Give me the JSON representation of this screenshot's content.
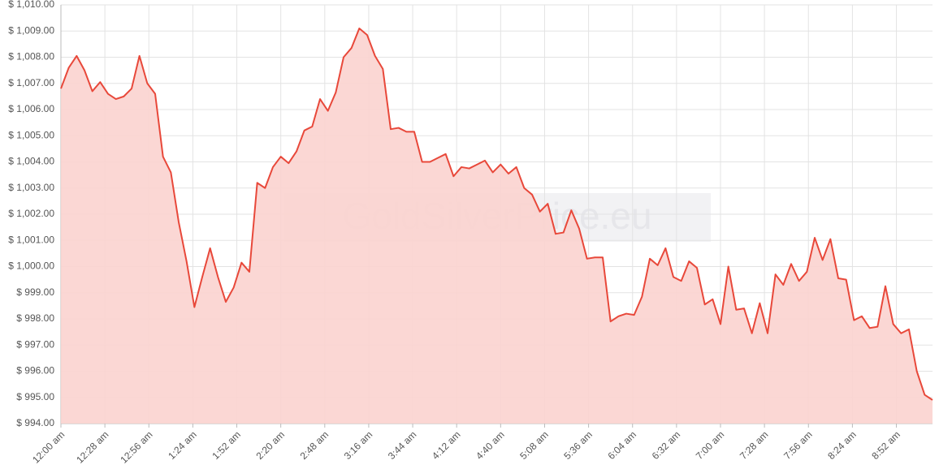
{
  "chart_data": {
    "type": "area",
    "watermark": "GoldSilverPrice.eu",
    "x": [
      0,
      5,
      10,
      15,
      20,
      25,
      30,
      35,
      40,
      45,
      50,
      55,
      60,
      65,
      70,
      75,
      80,
      85,
      90,
      95,
      100,
      105,
      110,
      115,
      120,
      125,
      130,
      135,
      140,
      145,
      150,
      155,
      160,
      165,
      170,
      175,
      180,
      185,
      190,
      195,
      200,
      205,
      210,
      215,
      220,
      225,
      230,
      235,
      240,
      245,
      250,
      255,
      260,
      265,
      270,
      275,
      280,
      285,
      290,
      295,
      300,
      305,
      310,
      315,
      320,
      325,
      330,
      335,
      340,
      345,
      350,
      355,
      360,
      365,
      370,
      375,
      380,
      385,
      390,
      395,
      400,
      405,
      410,
      415,
      420,
      425,
      430,
      435,
      440,
      445,
      450,
      455,
      460,
      465,
      470,
      475,
      480,
      485,
      490,
      495,
      500,
      505,
      510,
      515,
      520,
      525,
      530,
      535,
      540,
      545,
      550,
      555
    ],
    "values": [
      1006.8,
      1007.6,
      1008.05,
      1007.5,
      1006.7,
      1007.05,
      1006.6,
      1006.4,
      1006.5,
      1006.8,
      1008.05,
      1007.0,
      1006.6,
      1004.2,
      1003.6,
      1001.7,
      1000.2,
      998.45,
      999.6,
      1000.7,
      999.6,
      998.65,
      999.2,
      1000.15,
      999.8,
      1003.2,
      1003.0,
      1003.8,
      1004.2,
      1003.95,
      1004.4,
      1005.2,
      1005.35,
      1006.4,
      1005.95,
      1006.65,
      1008.0,
      1008.35,
      1009.1,
      1008.85,
      1008.05,
      1007.55,
      1005.25,
      1005.3,
      1005.15,
      1005.15,
      1004.0,
      1004.0,
      1004.15,
      1004.3,
      1003.45,
      1003.8,
      1003.75,
      1003.9,
      1004.05,
      1003.6,
      1003.9,
      1003.55,
      1003.8,
      1003.0,
      1002.75,
      1002.1,
      1002.4,
      1001.25,
      1001.3,
      1002.15,
      1001.45,
      1000.3,
      1000.35,
      1000.35,
      997.9,
      998.1,
      998.2,
      998.15,
      998.85,
      1000.3,
      1000.05,
      1000.7,
      999.6,
      999.45,
      1000.2,
      999.95,
      998.55,
      998.75,
      997.8,
      1000.0,
      998.35,
      998.4,
      997.45,
      998.6,
      997.45,
      999.7,
      999.3,
      1000.1,
      999.45,
      999.8,
      1001.1,
      1000.25,
      1001.05,
      999.55,
      999.5,
      997.95,
      998.1,
      997.65,
      997.7,
      999.25,
      997.8,
      997.45,
      997.6,
      996.0,
      995.1,
      994.9
    ],
    "color": "#e8483a",
    "fill": "#fbd3cf",
    "xlim": [
      0,
      555
    ],
    "xticks": [
      {
        "value": 0,
        "label": "12:00 am"
      },
      {
        "value": 28,
        "label": "12:28 am"
      },
      {
        "value": 56,
        "label": "12:56 am"
      },
      {
        "value": 84,
        "label": "1:24 am"
      },
      {
        "value": 112,
        "label": "1:52 am"
      },
      {
        "value": 140,
        "label": "2:20 am"
      },
      {
        "value": 168,
        "label": "2:48 am"
      },
      {
        "value": 196,
        "label": "3:16 am"
      },
      {
        "value": 224,
        "label": "3:44 am"
      },
      {
        "value": 252,
        "label": "4:12 am"
      },
      {
        "value": 280,
        "label": "4:40 am"
      },
      {
        "value": 308,
        "label": "5:08 am"
      },
      {
        "value": 336,
        "label": "5:36 am"
      },
      {
        "value": 364,
        "label": "6:04 am"
      },
      {
        "value": 392,
        "label": "6:32 am"
      },
      {
        "value": 420,
        "label": "7:00 am"
      },
      {
        "value": 448,
        "label": "7:28 am"
      },
      {
        "value": 476,
        "label": "7:56 am"
      },
      {
        "value": 504,
        "label": "8:24 am"
      },
      {
        "value": 532,
        "label": "8:52 am"
      }
    ],
    "ylim": [
      994,
      1010
    ],
    "yticks": [
      {
        "value": 994,
        "label": "$ 994.00"
      },
      {
        "value": 995,
        "label": "$ 995.00"
      },
      {
        "value": 996,
        "label": "$ 996.00"
      },
      {
        "value": 997,
        "label": "$ 997.00"
      },
      {
        "value": 998,
        "label": "$ 998.00"
      },
      {
        "value": 999,
        "label": "$ 999.00"
      },
      {
        "value": 1000,
        "label": "$ 1,000.00"
      },
      {
        "value": 1001,
        "label": "$ 1,001.00"
      },
      {
        "value": 1002,
        "label": "$ 1,002.00"
      },
      {
        "value": 1003,
        "label": "$ 1,003.00"
      },
      {
        "value": 1004,
        "label": "$ 1,004.00"
      },
      {
        "value": 1005,
        "label": "$ 1,005.00"
      },
      {
        "value": 1006,
        "label": "$ 1,006.00"
      },
      {
        "value": 1007,
        "label": "$ 1,007.00"
      },
      {
        "value": 1008,
        "label": "$ 1,008.00"
      },
      {
        "value": 1009,
        "label": "$ 1,009.00"
      },
      {
        "value": 1010,
        "label": "$ 1,010.00"
      }
    ],
    "grid": true
  }
}
